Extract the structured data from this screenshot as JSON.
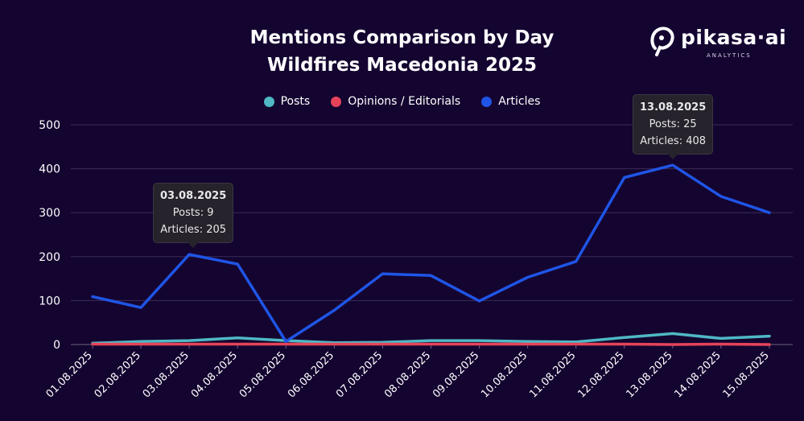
{
  "title_line1": "Mentions Comparison by Day",
  "title_line2": "Wildfires Macedonia 2025",
  "logo": {
    "name": "pikasa·ai",
    "sub": "ANALYTICS"
  },
  "colors": {
    "posts": "#4fb8c4",
    "opinions": "#e5435a",
    "articles": "#1f55e6",
    "grid": "#3a2d58",
    "background": "#140430"
  },
  "chart_data": {
    "type": "line",
    "categories": [
      "01.08.2025",
      "02.08.2025",
      "03.08.2025",
      "04.08.2025",
      "05.08.2025",
      "06.08.2025",
      "07.08.2025",
      "08.08.2025",
      "09.08.2025",
      "10.08.2025",
      "11.08.2025",
      "12.08.2025",
      "13.08.2025",
      "14.08.2025",
      "15.08.2025"
    ],
    "series": [
      {
        "name": "Posts",
        "color": "#4fb8c4",
        "values": [
          3,
          7,
          9,
          15,
          9,
          4,
          5,
          9,
          9,
          7,
          6,
          16,
          25,
          14,
          19
        ]
      },
      {
        "name": "Opinions / Editorials",
        "color": "#e5435a",
        "values": [
          1,
          1,
          1,
          1,
          1,
          1,
          1,
          1,
          1,
          1,
          1,
          1,
          0,
          1,
          0
        ]
      },
      {
        "name": "Articles",
        "color": "#1f55e6",
        "values": [
          109,
          84,
          205,
          183,
          7,
          78,
          161,
          157,
          99,
          153,
          189,
          380,
          408,
          337,
          300
        ]
      }
    ],
    "yticks": [
      0,
      100,
      200,
      300,
      400,
      500
    ],
    "ylim": [
      0,
      500
    ],
    "grid": true,
    "legend_position": "top-center",
    "tooltips": [
      {
        "index": 2,
        "date": "03.08.2025",
        "lines": [
          "Posts: 9",
          "Articles: 205"
        ]
      },
      {
        "index": 12,
        "date": "13.08.2025",
        "lines": [
          "Posts: 25",
          "Articles: 408"
        ]
      }
    ]
  }
}
